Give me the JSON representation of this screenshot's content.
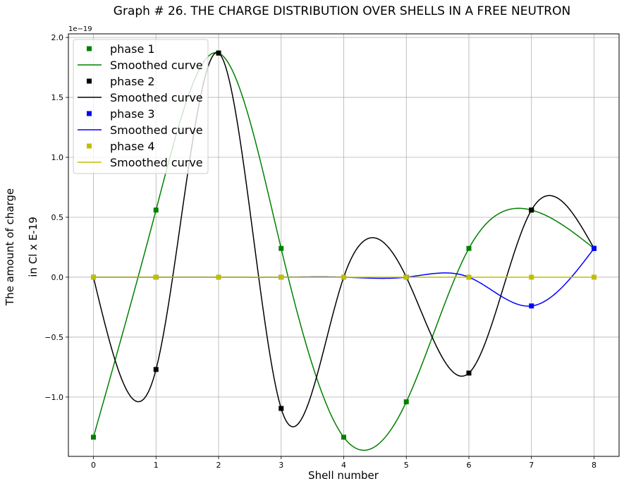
{
  "chart_data": {
    "type": "line",
    "title": "Graph # 26. THE CHARGE DISTRIBUTION OVER SHELLS IN A FREE NEUTRON",
    "xlabel": "Shell number",
    "ylabel_line1": "The amount of charge",
    "ylabel_line2": "in Cl x E-19",
    "y_offset_label": "1e−19",
    "xlim": [
      -0.4,
      8.4
    ],
    "ylim": [
      -1.495,
      2.03
    ],
    "x_ticks": [
      0,
      1,
      2,
      3,
      4,
      5,
      6,
      7,
      8
    ],
    "x_tick_labels": [
      "0",
      "1",
      "2",
      "3",
      "4",
      "5",
      "6",
      "7",
      "8"
    ],
    "y_ticks": [
      -1.0,
      -0.5,
      0.0,
      0.5,
      1.0,
      1.5,
      2.0
    ],
    "y_tick_labels": [
      "−1.0",
      "−0.5",
      "0.0",
      "0.5",
      "1.0",
      "1.5",
      "2.0"
    ],
    "grid": true,
    "legend_position": "top-left",
    "x": [
      0,
      1,
      2,
      3,
      4,
      5,
      6,
      7,
      8
    ],
    "series": [
      {
        "name": "phase 1",
        "curve_name": "Smoothed curve",
        "color": "#008000",
        "values": [
          -1.335,
          0.56,
          1.87,
          0.24,
          -1.335,
          -1.04,
          0.24,
          0.56,
          0.24
        ]
      },
      {
        "name": "phase 2",
        "curve_name": "Smoothed curve",
        "color": "#000000",
        "values": [
          0,
          -0.77,
          1.87,
          -1.095,
          0,
          0,
          -0.8,
          0.56,
          0.24
        ]
      },
      {
        "name": "phase 3",
        "curve_name": "Smoothed curve",
        "color": "#0000ff",
        "values": [
          0,
          0,
          0,
          0,
          0,
          0,
          0,
          -0.24,
          0.24
        ]
      },
      {
        "name": "phase 4",
        "curve_name": "Smoothed curve",
        "color": "#bfbf00",
        "values": [
          0,
          0,
          0,
          0,
          0,
          0,
          0,
          0,
          0
        ]
      }
    ]
  }
}
